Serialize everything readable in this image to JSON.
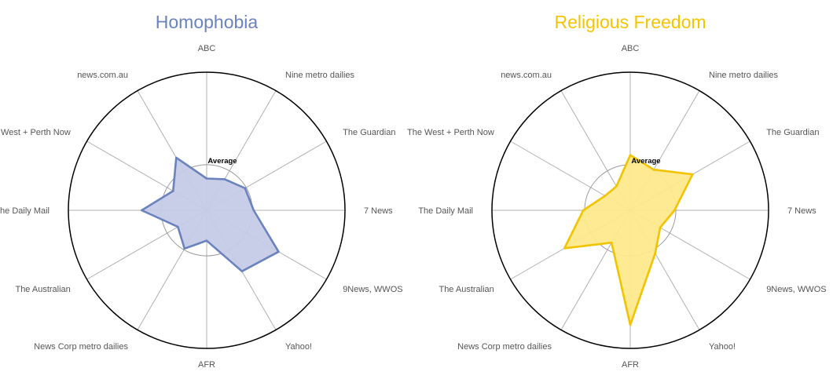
{
  "chart_data": [
    {
      "type": "radar",
      "title": "Homophobia",
      "title_color": "#6a82bd",
      "fill_color": "#c5cbe6",
      "line_color": "#6a82bd",
      "categories": [
        "ABC",
        "Nine metro dailies",
        "The Guardian",
        "7 News",
        "9News, WWOS",
        "Yahoo!",
        "AFR",
        "News Corp metro dailies",
        "The Australian",
        "The Daily Mail",
        "The West + Perth Now",
        "news.com.au"
      ],
      "values": [
        0.23,
        0.26,
        0.32,
        0.34,
        0.6,
        0.51,
        0.22,
        0.32,
        0.24,
        0.47,
        0.28,
        0.44
      ],
      "average_label": "Average",
      "average_value": 0.33,
      "rmax": 1.0,
      "grid": true
    },
    {
      "type": "radar",
      "title": "Religious Freedom",
      "title_color": "#f5c400",
      "fill_color": "#fde98c",
      "line_color": "#f2c300",
      "categories": [
        "ABC",
        "Nine metro dailies",
        "The Guardian",
        "7 News",
        "9News, WWOS",
        "Yahoo!",
        "AFR",
        "News Corp metro dailies",
        "The Australian",
        "The Daily Mail",
        "The West + Perth Now",
        "news.com.au"
      ],
      "values": [
        0.4,
        0.34,
        0.52,
        0.32,
        0.25,
        0.36,
        0.83,
        0.27,
        0.55,
        0.34,
        0.21,
        0.2
      ],
      "average_label": "Average",
      "average_value": 0.33,
      "rmax": 1.0,
      "grid": true
    }
  ]
}
